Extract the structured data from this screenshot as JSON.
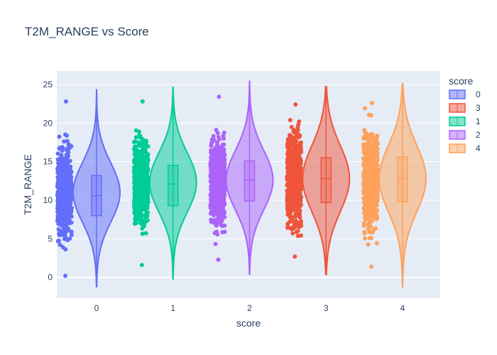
{
  "chart_data": {
    "type": "violin",
    "title": "T2M_RANGE vs Score",
    "xlabel": "score",
    "ylabel": "T2M_RANGE",
    "categories": [
      "0",
      "1",
      "2",
      "3",
      "4"
    ],
    "ylim": [
      -2.5,
      25.5
    ],
    "yticks": [
      0,
      5,
      10,
      15,
      20,
      25
    ],
    "grid": true,
    "legend": {
      "title": "score",
      "placement": "right",
      "entries": [
        "0",
        "3",
        "1",
        "2",
        "4"
      ]
    },
    "series": [
      {
        "name": "0",
        "color": "#636efa",
        "violin_min": -1.2,
        "violin_max": 24.3,
        "points_min": 0.2,
        "points_max": 22.8,
        "q1": 8.0,
        "median": 10.6,
        "q3": 13.2,
        "whisker_low": 0.5,
        "whisker_high": 20.8,
        "peak": 11.0
      },
      {
        "name": "1",
        "color": "#00cc96",
        "violin_min": -0.2,
        "violin_max": 24.6,
        "points_min": 1.6,
        "points_max": 22.8,
        "q1": 9.3,
        "median": 12.1,
        "q3": 14.5,
        "whisker_low": 2.5,
        "whisker_high": 21.5,
        "peak": 12.3
      },
      {
        "name": "2",
        "color": "#ab63fa",
        "violin_min": 0.4,
        "violin_max": 25.4,
        "points_min": 2.3,
        "points_max": 23.4,
        "q1": 9.9,
        "median": 12.6,
        "q3": 15.1,
        "whisker_low": 2.6,
        "whisker_high": 22.0,
        "peak": 12.6
      },
      {
        "name": "3",
        "color": "#ef553b",
        "violin_min": 0.4,
        "violin_max": 24.7,
        "points_min": 2.7,
        "points_max": 22.4,
        "q1": 9.7,
        "median": 12.8,
        "q3": 15.5,
        "whisker_low": 3.0,
        "whisker_high": 21.3,
        "peak": 12.8
      },
      {
        "name": "4",
        "color": "#ffa15a",
        "violin_min": -1.2,
        "violin_max": 25.1,
        "points_min": 1.4,
        "points_max": 22.6,
        "q1": 9.8,
        "median": 12.8,
        "q3": 15.6,
        "whisker_low": 3.8,
        "whisker_high": 21.0,
        "peak": 12.8
      }
    ]
  }
}
